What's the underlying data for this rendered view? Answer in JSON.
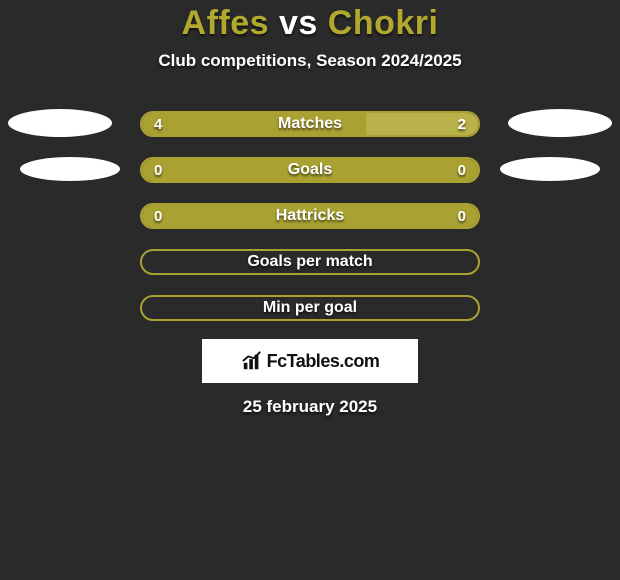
{
  "title": {
    "player1": "Affes",
    "vs": "vs",
    "player2": "Chokri",
    "color_players": "#b0a92e",
    "color_vs": "#ffffff"
  },
  "subtitle": "Club competitions, Season 2024/2025",
  "colors": {
    "background": "#2a2a2a",
    "bar_fill": "#a9a131",
    "bar_fill_alt": "#b9b24a",
    "bar_border": "#a9a131",
    "ellipse": "#ffffff",
    "text": "#ffffff"
  },
  "bar": {
    "height": 26,
    "radius": 13,
    "border_width": 2
  },
  "rows": [
    {
      "label": "Matches",
      "left_value": "4",
      "right_value": "2",
      "left_pct": 66.6,
      "right_pct": 33.4,
      "show_values": true,
      "show_ellipses": true,
      "left_fill": "#a9a131",
      "right_fill": "#b9b24a"
    },
    {
      "label": "Goals",
      "left_value": "0",
      "right_value": "0",
      "left_pct": 100,
      "right_pct": 0,
      "show_values": true,
      "show_ellipses": true,
      "left_fill": "#a9a131",
      "right_fill": "#a9a131"
    },
    {
      "label": "Hattricks",
      "left_value": "0",
      "right_value": "0",
      "left_pct": 100,
      "right_pct": 0,
      "show_values": true,
      "show_ellipses": false,
      "left_fill": "#a9a131",
      "right_fill": "#a9a131"
    },
    {
      "label": "Goals per match",
      "left_value": "",
      "right_value": "",
      "left_pct": 0,
      "right_pct": 0,
      "show_values": false,
      "show_ellipses": false,
      "left_fill": "#a9a131",
      "right_fill": "#a9a131"
    },
    {
      "label": "Min per goal",
      "left_value": "",
      "right_value": "",
      "left_pct": 0,
      "right_pct": 0,
      "show_values": false,
      "show_ellipses": false,
      "left_fill": "#a9a131",
      "right_fill": "#a9a131"
    }
  ],
  "brand": {
    "icon_name": "bar-chart-icon",
    "text": "FcTables.com"
  },
  "date": "25 february 2025"
}
